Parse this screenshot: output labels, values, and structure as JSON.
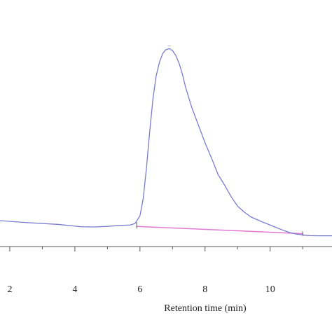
{
  "chart_data": {
    "type": "line",
    "title": "",
    "xlabel": "Retention time (min)",
    "ylabel": "",
    "xlim": [
      1.7,
      11.9
    ],
    "ylim": [
      -0.03,
      1.02
    ],
    "grid": false,
    "legend": "none",
    "x_ticks": [
      2,
      4,
      6,
      8,
      10
    ],
    "x_minor_ticks": [
      1,
      3,
      5,
      7,
      9,
      11
    ],
    "x_tick_labels": [
      "2",
      "4",
      "6",
      "8",
      "10"
    ],
    "peak_label": "--",
    "colors": {
      "signal": "#7b7bd0",
      "baseline": "#e07ad6",
      "axis": "#555555"
    },
    "series": [
      {
        "type": "line",
        "x": [
          1.7,
          2.5,
          3.5,
          4.2,
          4.6,
          5.0,
          5.4,
          5.7,
          5.85,
          6.0,
          6.1,
          6.2,
          6.3,
          6.4,
          6.5,
          6.6,
          6.7,
          6.8,
          6.9,
          7.0,
          7.1,
          7.2,
          7.3,
          7.4,
          7.6,
          7.8,
          8.0,
          8.2,
          8.4,
          8.6,
          8.8,
          9.0,
          9.2,
          9.4,
          9.6,
          9.8,
          10.0,
          10.2,
          10.4,
          10.6,
          10.8,
          11.0,
          11.2,
          11.5,
          11.9
        ],
        "y": [
          0.105,
          0.095,
          0.085,
          0.073,
          0.072,
          0.075,
          0.08,
          0.082,
          0.09,
          0.13,
          0.22,
          0.38,
          0.57,
          0.74,
          0.86,
          0.93,
          0.975,
          0.995,
          1.0,
          0.99,
          0.965,
          0.925,
          0.87,
          0.8,
          0.69,
          0.6,
          0.51,
          0.43,
          0.345,
          0.29,
          0.23,
          0.18,
          0.15,
          0.125,
          0.11,
          0.095,
          0.082,
          0.068,
          0.055,
          0.043,
          0.035,
          0.03,
          0.027,
          0.026,
          0.026
        ]
      },
      {
        "type": "line",
        "x": [
          5.9,
          11.0
        ],
        "y": [
          0.075,
          0.037
        ]
      }
    ]
  }
}
